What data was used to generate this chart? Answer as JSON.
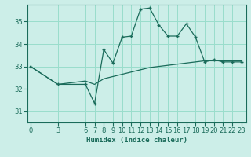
{
  "xlabel": "Humidex (Indice chaleur)",
  "bg_color": "#cceee8",
  "grid_color": "#99ddcc",
  "line_color": "#1a6b5a",
  "xticks": [
    0,
    3,
    6,
    7,
    8,
    9,
    10,
    11,
    12,
    13,
    14,
    15,
    16,
    17,
    18,
    19,
    20,
    21,
    22,
    23
  ],
  "yticks": [
    31,
    32,
    33,
    34,
    35
  ],
  "ylim": [
    30.5,
    35.75
  ],
  "xlim": [
    -0.3,
    23.5
  ],
  "line1_x": [
    0,
    3,
    6,
    7,
    8,
    9,
    10,
    11,
    12,
    13,
    14,
    15,
    16,
    17,
    18,
    19,
    20,
    21,
    22,
    23
  ],
  "line1_y": [
    33.0,
    32.2,
    32.2,
    31.35,
    33.75,
    33.15,
    34.3,
    34.35,
    35.55,
    35.6,
    34.85,
    34.35,
    34.35,
    34.9,
    34.3,
    33.2,
    33.3,
    33.2,
    33.2,
    33.2
  ],
  "line2_x": [
    0,
    3,
    6,
    7,
    8,
    9,
    10,
    11,
    12,
    13,
    14,
    15,
    16,
    17,
    18,
    19,
    20,
    21,
    22,
    23
  ],
  "line2_y": [
    33.0,
    32.2,
    32.35,
    32.2,
    32.45,
    32.55,
    32.65,
    32.75,
    32.85,
    32.95,
    33.0,
    33.05,
    33.1,
    33.15,
    33.2,
    33.25,
    33.25,
    33.25,
    33.25,
    33.25
  ]
}
